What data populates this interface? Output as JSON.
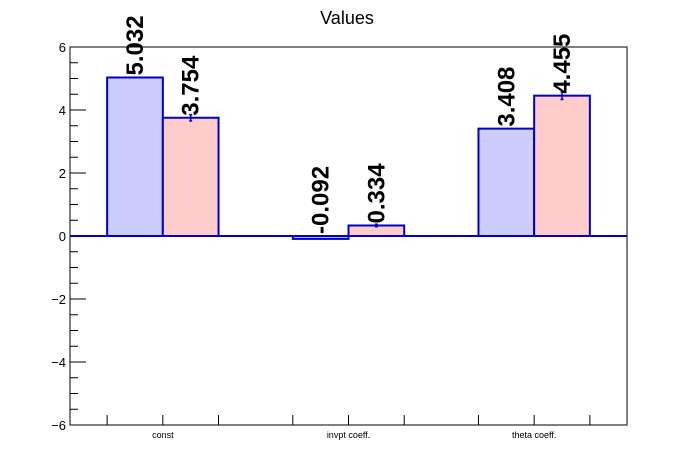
{
  "chart_data": {
    "type": "bar",
    "title": "Values",
    "categories": [
      "const",
      "invpt coeff.",
      "theta coeff."
    ],
    "series": [
      {
        "values": [
          5.032,
          -0.092,
          3.408
        ],
        "errors": [
          0,
          0,
          0
        ],
        "fill": "#ccccff",
        "stroke": "#0000cc"
      },
      {
        "values": [
          3.754,
          0.334,
          4.455
        ],
        "errors": [
          0.1,
          0.04,
          0.12
        ],
        "fill": "#ffcccc",
        "stroke": "#0000cc"
      }
    ],
    "data_labels": [
      [
        "5.032",
        "-0.092",
        "3.408"
      ],
      [
        "3.754",
        "0.334",
        "4.455"
      ]
    ],
    "ylim": [
      -6,
      6
    ],
    "yticks": [
      -6,
      -4,
      -2,
      0,
      2,
      4,
      6
    ],
    "ytick_labels": [
      "−6",
      "−4",
      "−2",
      "0",
      "2",
      "4",
      "6"
    ],
    "grid": false,
    "xlabel": "",
    "ylabel": ""
  }
}
